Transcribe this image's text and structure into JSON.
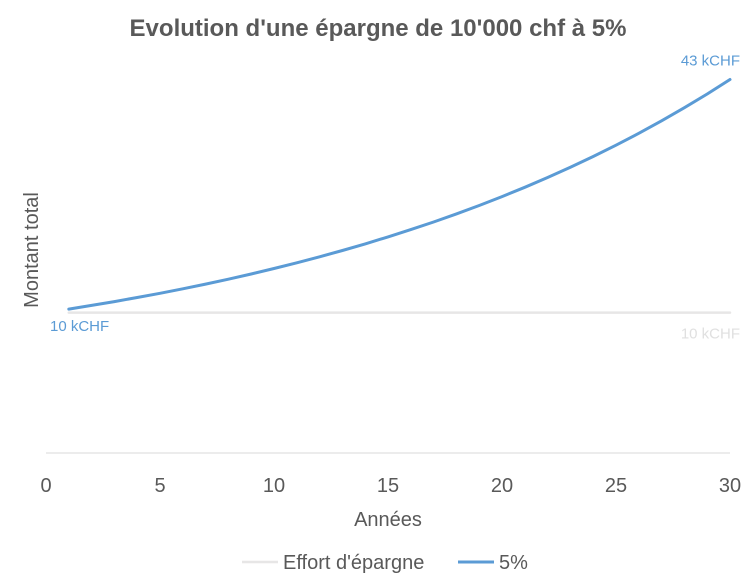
{
  "chart_data": {
    "type": "line",
    "title": "Evolution d'une épargne de 10'000 chf à 5%",
    "xlabel": "Années",
    "ylabel": "Montant total",
    "xlim": [
      0,
      30
    ],
    "xticks": [
      0,
      5,
      10,
      15,
      20,
      25,
      30
    ],
    "ylim": [
      -10,
      46
    ],
    "grid": false,
    "legend": "bottom",
    "x": [
      1,
      2,
      3,
      4,
      5,
      6,
      7,
      8,
      9,
      10,
      11,
      12,
      13,
      14,
      15,
      16,
      17,
      18,
      19,
      20,
      21,
      22,
      23,
      24,
      25,
      26,
      27,
      28,
      29,
      30
    ],
    "series": [
      {
        "name": "Effort d'épargne",
        "color": "#e7e6e6",
        "values": [
          10,
          10,
          10,
          10,
          10,
          10,
          10,
          10,
          10,
          10,
          10,
          10,
          10,
          10,
          10,
          10,
          10,
          10,
          10,
          10,
          10,
          10,
          10,
          10,
          10,
          10,
          10,
          10,
          10,
          10
        ],
        "start_label": "",
        "end_label": "10 kCHF"
      },
      {
        "name": "5%",
        "color": "#5b9bd5",
        "values": [
          10.5,
          11.03,
          11.58,
          12.16,
          12.76,
          13.4,
          14.07,
          14.77,
          15.51,
          16.29,
          17.1,
          17.96,
          18.86,
          19.8,
          20.79,
          21.83,
          22.92,
          24.07,
          25.27,
          26.53,
          27.86,
          29.25,
          30.72,
          32.25,
          33.86,
          35.56,
          37.33,
          39.2,
          41.16,
          43.22
        ],
        "start_label": "10 kCHF",
        "end_label": "43 kCHF"
      }
    ]
  }
}
